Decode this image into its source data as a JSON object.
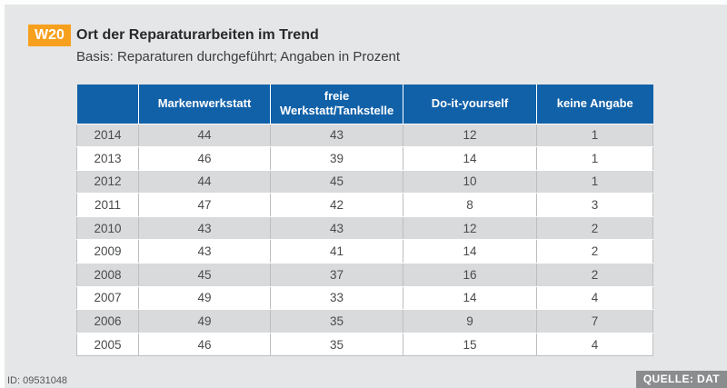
{
  "header": {
    "badge": "W20",
    "title": "Ort der Reparaturarbeiten im Trend",
    "subtitle": "Basis: Reparaturen durchgeführt; Angaben in Prozent"
  },
  "chart_data": {
    "type": "table",
    "title": "Ort der Reparaturarbeiten im Trend",
    "subtitle": "Basis: Reparaturen durchgeführt; Angaben in Prozent",
    "unit": "Prozent",
    "columns": [
      "",
      "Markenwerkstatt",
      "freie Werkstatt/Tankstelle",
      "Do-it-yourself",
      "keine Angabe"
    ],
    "rows": [
      {
        "year": "2014",
        "values": [
          44,
          43,
          12,
          1
        ]
      },
      {
        "year": "2013",
        "values": [
          46,
          39,
          14,
          1
        ]
      },
      {
        "year": "2012",
        "values": [
          44,
          45,
          10,
          1
        ]
      },
      {
        "year": "2011",
        "values": [
          47,
          42,
          8,
          3
        ]
      },
      {
        "year": "2010",
        "values": [
          43,
          43,
          12,
          2
        ]
      },
      {
        "year": "2009",
        "values": [
          43,
          41,
          14,
          2
        ]
      },
      {
        "year": "2008",
        "values": [
          45,
          37,
          16,
          2
        ]
      },
      {
        "year": "2007",
        "values": [
          49,
          33,
          14,
          4
        ]
      },
      {
        "year": "2006",
        "values": [
          49,
          35,
          9,
          7
        ]
      },
      {
        "year": "2005",
        "values": [
          46,
          35,
          15,
          4
        ]
      }
    ],
    "layout": {
      "header_background": "#1161a8",
      "row_alt_background": "#d9dadb",
      "grid": true
    }
  },
  "footer": {
    "id_label": "ID: 09531048",
    "source_label": "QUELLE: DAT"
  },
  "colors": {
    "accent-orange": "#f6a01e",
    "header-blue": "#1161a8",
    "source-gray": "#8b8c8e",
    "panel-gray": "#e5e6e7"
  }
}
